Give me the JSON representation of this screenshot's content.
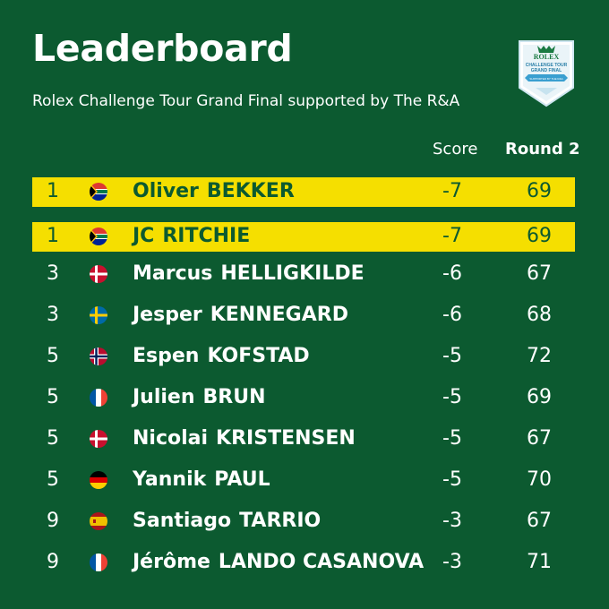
{
  "title": "Leaderboard",
  "subtitle": "Rolex Challenge Tour Grand Final supported by The R&A",
  "logo": {
    "brand": "ROLEX",
    "line1": "CHALLENGE TOUR",
    "line2": "GRAND FINAL",
    "ribbon": "SUPPORTED BY THE R&A"
  },
  "columns": {
    "score": "Score",
    "round": "Round 2"
  },
  "rows": [
    {
      "pos": "1",
      "flag": "south-africa",
      "first": "Oliver",
      "last": "BEKKER",
      "score": "-7",
      "round": "69",
      "highlight": true
    },
    {
      "pos": "1",
      "flag": "south-africa",
      "first": "JC",
      "last": "RITCHIE",
      "score": "-7",
      "round": "69",
      "highlight": true
    },
    {
      "pos": "3",
      "flag": "denmark",
      "first": "Marcus",
      "last": "HELLIGKILDE",
      "score": "-6",
      "round": "67",
      "highlight": false
    },
    {
      "pos": "3",
      "flag": "sweden",
      "first": "Jesper",
      "last": "KENNEGARD",
      "score": "-6",
      "round": "68",
      "highlight": false
    },
    {
      "pos": "5",
      "flag": "norway",
      "first": "Espen",
      "last": "KOFSTAD",
      "score": "-5",
      "round": "72",
      "highlight": false
    },
    {
      "pos": "5",
      "flag": "france",
      "first": "Julien",
      "last": "BRUN",
      "score": "-5",
      "round": "69",
      "highlight": false
    },
    {
      "pos": "5",
      "flag": "denmark",
      "first": "Nicolai",
      "last": "KRISTENSEN",
      "score": "-5",
      "round": "67",
      "highlight": false
    },
    {
      "pos": "5",
      "flag": "germany",
      "first": "Yannik",
      "last": "PAUL",
      "score": "-5",
      "round": "70",
      "highlight": false
    },
    {
      "pos": "9",
      "flag": "spain",
      "first": "Santiago",
      "last": "TARRIO",
      "score": "-3",
      "round": "67",
      "highlight": false
    },
    {
      "pos": "9",
      "flag": "france",
      "first": "Jérôme",
      "last": "LANDO CASANOVA",
      "score": "-3",
      "round": "71",
      "highlight": false
    }
  ],
  "colors": {
    "background": "#0c5a30",
    "highlight": "#f5df00",
    "text": "#ffffff"
  }
}
